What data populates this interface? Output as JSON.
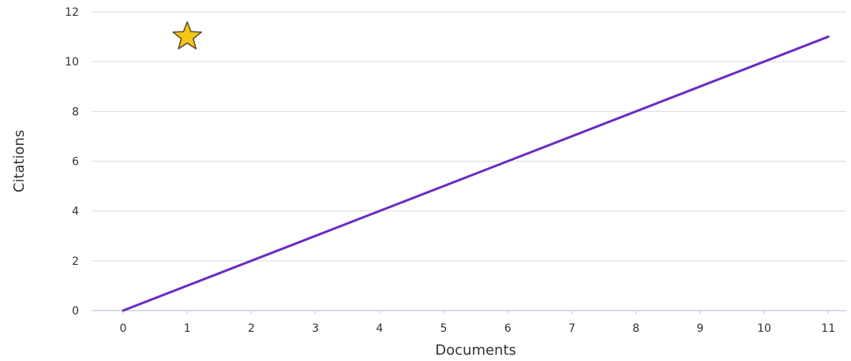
{
  "chart_data": {
    "type": "line",
    "xlabel": "Documents",
    "ylabel": "Citations",
    "xlim": [
      0,
      11
    ],
    "ylim": [
      0,
      12
    ],
    "x_ticks": [
      "0",
      "1",
      "2",
      "3",
      "4",
      "5",
      "6",
      "7",
      "8",
      "9",
      "10",
      "11"
    ],
    "y_ticks": [
      "0",
      "2",
      "4",
      "6",
      "8",
      "10",
      "12"
    ],
    "grid": true,
    "series": [
      {
        "x": [
          0,
          11
        ],
        "y": [
          0,
          11
        ],
        "color": "#6a2bc4"
      }
    ],
    "marker_point": {
      "x": 1,
      "y": 11,
      "shape": "star",
      "color": "#f5c518"
    }
  }
}
